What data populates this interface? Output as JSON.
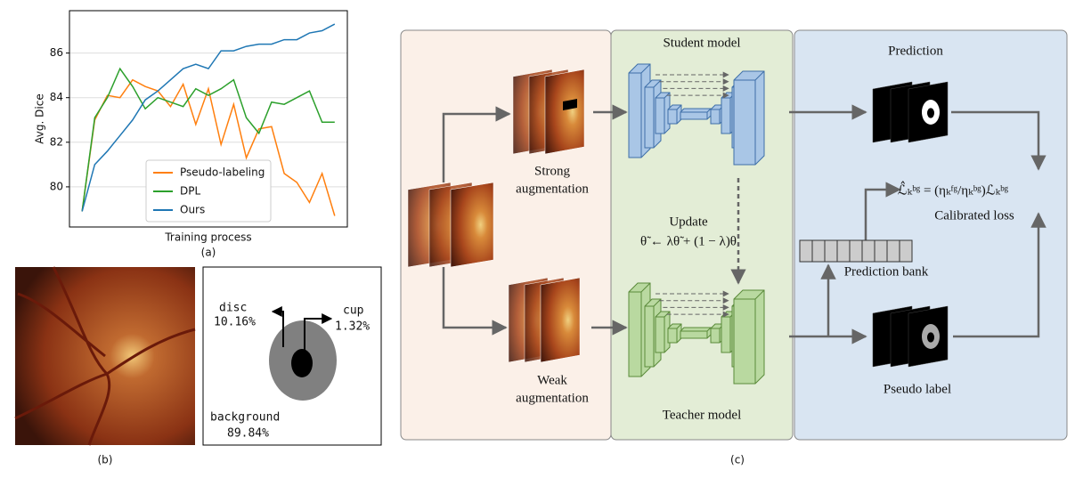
{
  "chart_data": {
    "type": "line",
    "ylabel": "Avg. Dice",
    "xlabel": "Training process",
    "caption": "(a)",
    "x": [
      0,
      1,
      2,
      3,
      4,
      5,
      6,
      7,
      8,
      9,
      10,
      11,
      12,
      13,
      14,
      15,
      16,
      17,
      18,
      19,
      20
    ],
    "xlim": [
      -1,
      21
    ],
    "xticks": [],
    "ylim": [
      78.2,
      87.9
    ],
    "yticks": [
      80,
      82,
      84,
      86
    ],
    "grid": true,
    "legend": "lower center",
    "series": [
      {
        "name": "Pseudo-labeling",
        "color": "#ff7f0e",
        "values": [
          78.9,
          83.0,
          84.1,
          84.0,
          84.8,
          84.5,
          84.3,
          83.6,
          84.6,
          82.8,
          84.4,
          81.9,
          83.7,
          81.3,
          82.6,
          82.7,
          80.6,
          80.2,
          79.3,
          80.6,
          78.7
        ]
      },
      {
        "name": "DPL",
        "color": "#2ca02c",
        "values": [
          78.9,
          83.1,
          84.0,
          85.3,
          84.5,
          83.5,
          84.0,
          83.8,
          83.6,
          84.4,
          84.1,
          84.4,
          84.8,
          83.1,
          82.4,
          83.8,
          83.7,
          84.0,
          84.3,
          82.9,
          82.9
        ]
      },
      {
        "name": "Ours",
        "color": "#1f77b4",
        "values": [
          78.9,
          81.0,
          81.6,
          82.3,
          83.0,
          83.9,
          84.3,
          84.8,
          85.3,
          85.5,
          85.3,
          86.1,
          86.1,
          86.3,
          86.4,
          86.4,
          86.6,
          86.6,
          86.9,
          87.0,
          87.3
        ]
      }
    ]
  },
  "panel_b": {
    "caption": "(b)",
    "disc_label": "disc",
    "disc_value": "10.16%",
    "cup_label": "cup",
    "cup_value": "1.32%",
    "background_label": "background",
    "background_value": "89.84%"
  },
  "panel_c": {
    "caption": "(c)",
    "student": "Student model",
    "teacher": "Teacher model",
    "strong_1": "Strong",
    "strong_2": "augmentation",
    "weak_1": "Weak",
    "weak_2": "augmentation",
    "update": "Update",
    "update_formula": "θ̃ ← λθ̃ + (1 − λ)θ",
    "prediction": "Prediction",
    "prediction_bank": "Prediction bank",
    "pseudo_label": "Pseudo label",
    "loss_formula": "ℒ̂ₖᵇᵍ = (ηₖᶠᵍ/ηₖᵇᵍ)ℒₖᵇᵍ",
    "calibrated_loss": "Calibrated loss"
  }
}
